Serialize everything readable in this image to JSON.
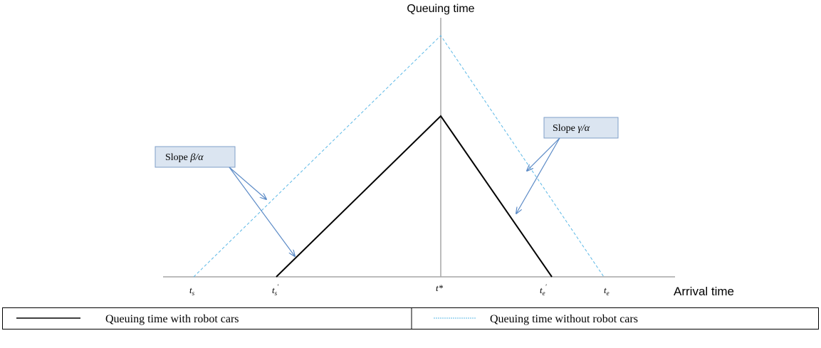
{
  "axes": {
    "y_label": "Queuing time",
    "x_label": "Arrival time"
  },
  "ticks": [
    {
      "base": "t",
      "sub": "s"
    },
    {
      "base": "t",
      "sub": "s",
      "sup": "′"
    },
    {
      "base": "t*"
    },
    {
      "base": "t",
      "sub": "e",
      "sup": "′"
    },
    {
      "base": "t",
      "sub": "e"
    }
  ],
  "callouts": [
    {
      "prefix": "Slope ",
      "ratio": "β/α"
    },
    {
      "prefix": "Slope ",
      "ratio": "γ/α"
    }
  ],
  "legend": [
    "Queuing time with robot cars",
    "Queuing time without robot cars"
  ]
}
